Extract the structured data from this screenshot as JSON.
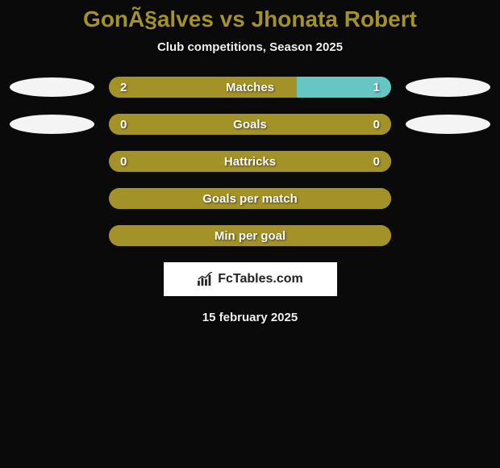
{
  "title": "GonÃ§alves vs Jhonata Robert",
  "subtitle": "Club competitions, Season 2025",
  "date": "15 february 2025",
  "logo_text": "FcTables.com",
  "colors": {
    "bar_bg": "#a39228",
    "accent_right": "#65c6c4",
    "pill_white": "#f4f4f4",
    "title_color": "#a39228",
    "text_color": "#f0f0f0",
    "background": "#0a0a0a"
  },
  "rows": [
    {
      "label": "Matches",
      "left_val": "2",
      "right_val": "1",
      "left_fill_pct": 66.6,
      "right_fill_pct": 33.4,
      "left_fill_color": "#a39228",
      "right_fill_color": "#65c6c4",
      "left_pill_color": "#f4f4f4",
      "right_pill_color": "#f4f4f4"
    },
    {
      "label": "Goals",
      "left_val": "0",
      "right_val": "0",
      "left_fill_pct": 100,
      "right_fill_pct": 0,
      "left_fill_color": "#a39228",
      "right_fill_color": "#a39228",
      "left_pill_color": "#f4f4f4",
      "right_pill_color": "#f4f4f4"
    },
    {
      "label": "Hattricks",
      "left_val": "0",
      "right_val": "0",
      "left_fill_pct": 100,
      "right_fill_pct": 0,
      "left_fill_color": "#a39228",
      "right_fill_color": "#a39228",
      "left_pill_color": null,
      "right_pill_color": null
    },
    {
      "label": "Goals per match",
      "left_val": "",
      "right_val": "",
      "left_fill_pct": 100,
      "right_fill_pct": 0,
      "left_fill_color": "#a39228",
      "right_fill_color": "#a39228",
      "left_pill_color": null,
      "right_pill_color": null
    },
    {
      "label": "Min per goal",
      "left_val": "",
      "right_val": "",
      "left_fill_pct": 100,
      "right_fill_pct": 0,
      "left_fill_color": "#a39228",
      "right_fill_color": "#a39228",
      "left_pill_color": null,
      "right_pill_color": null
    }
  ]
}
